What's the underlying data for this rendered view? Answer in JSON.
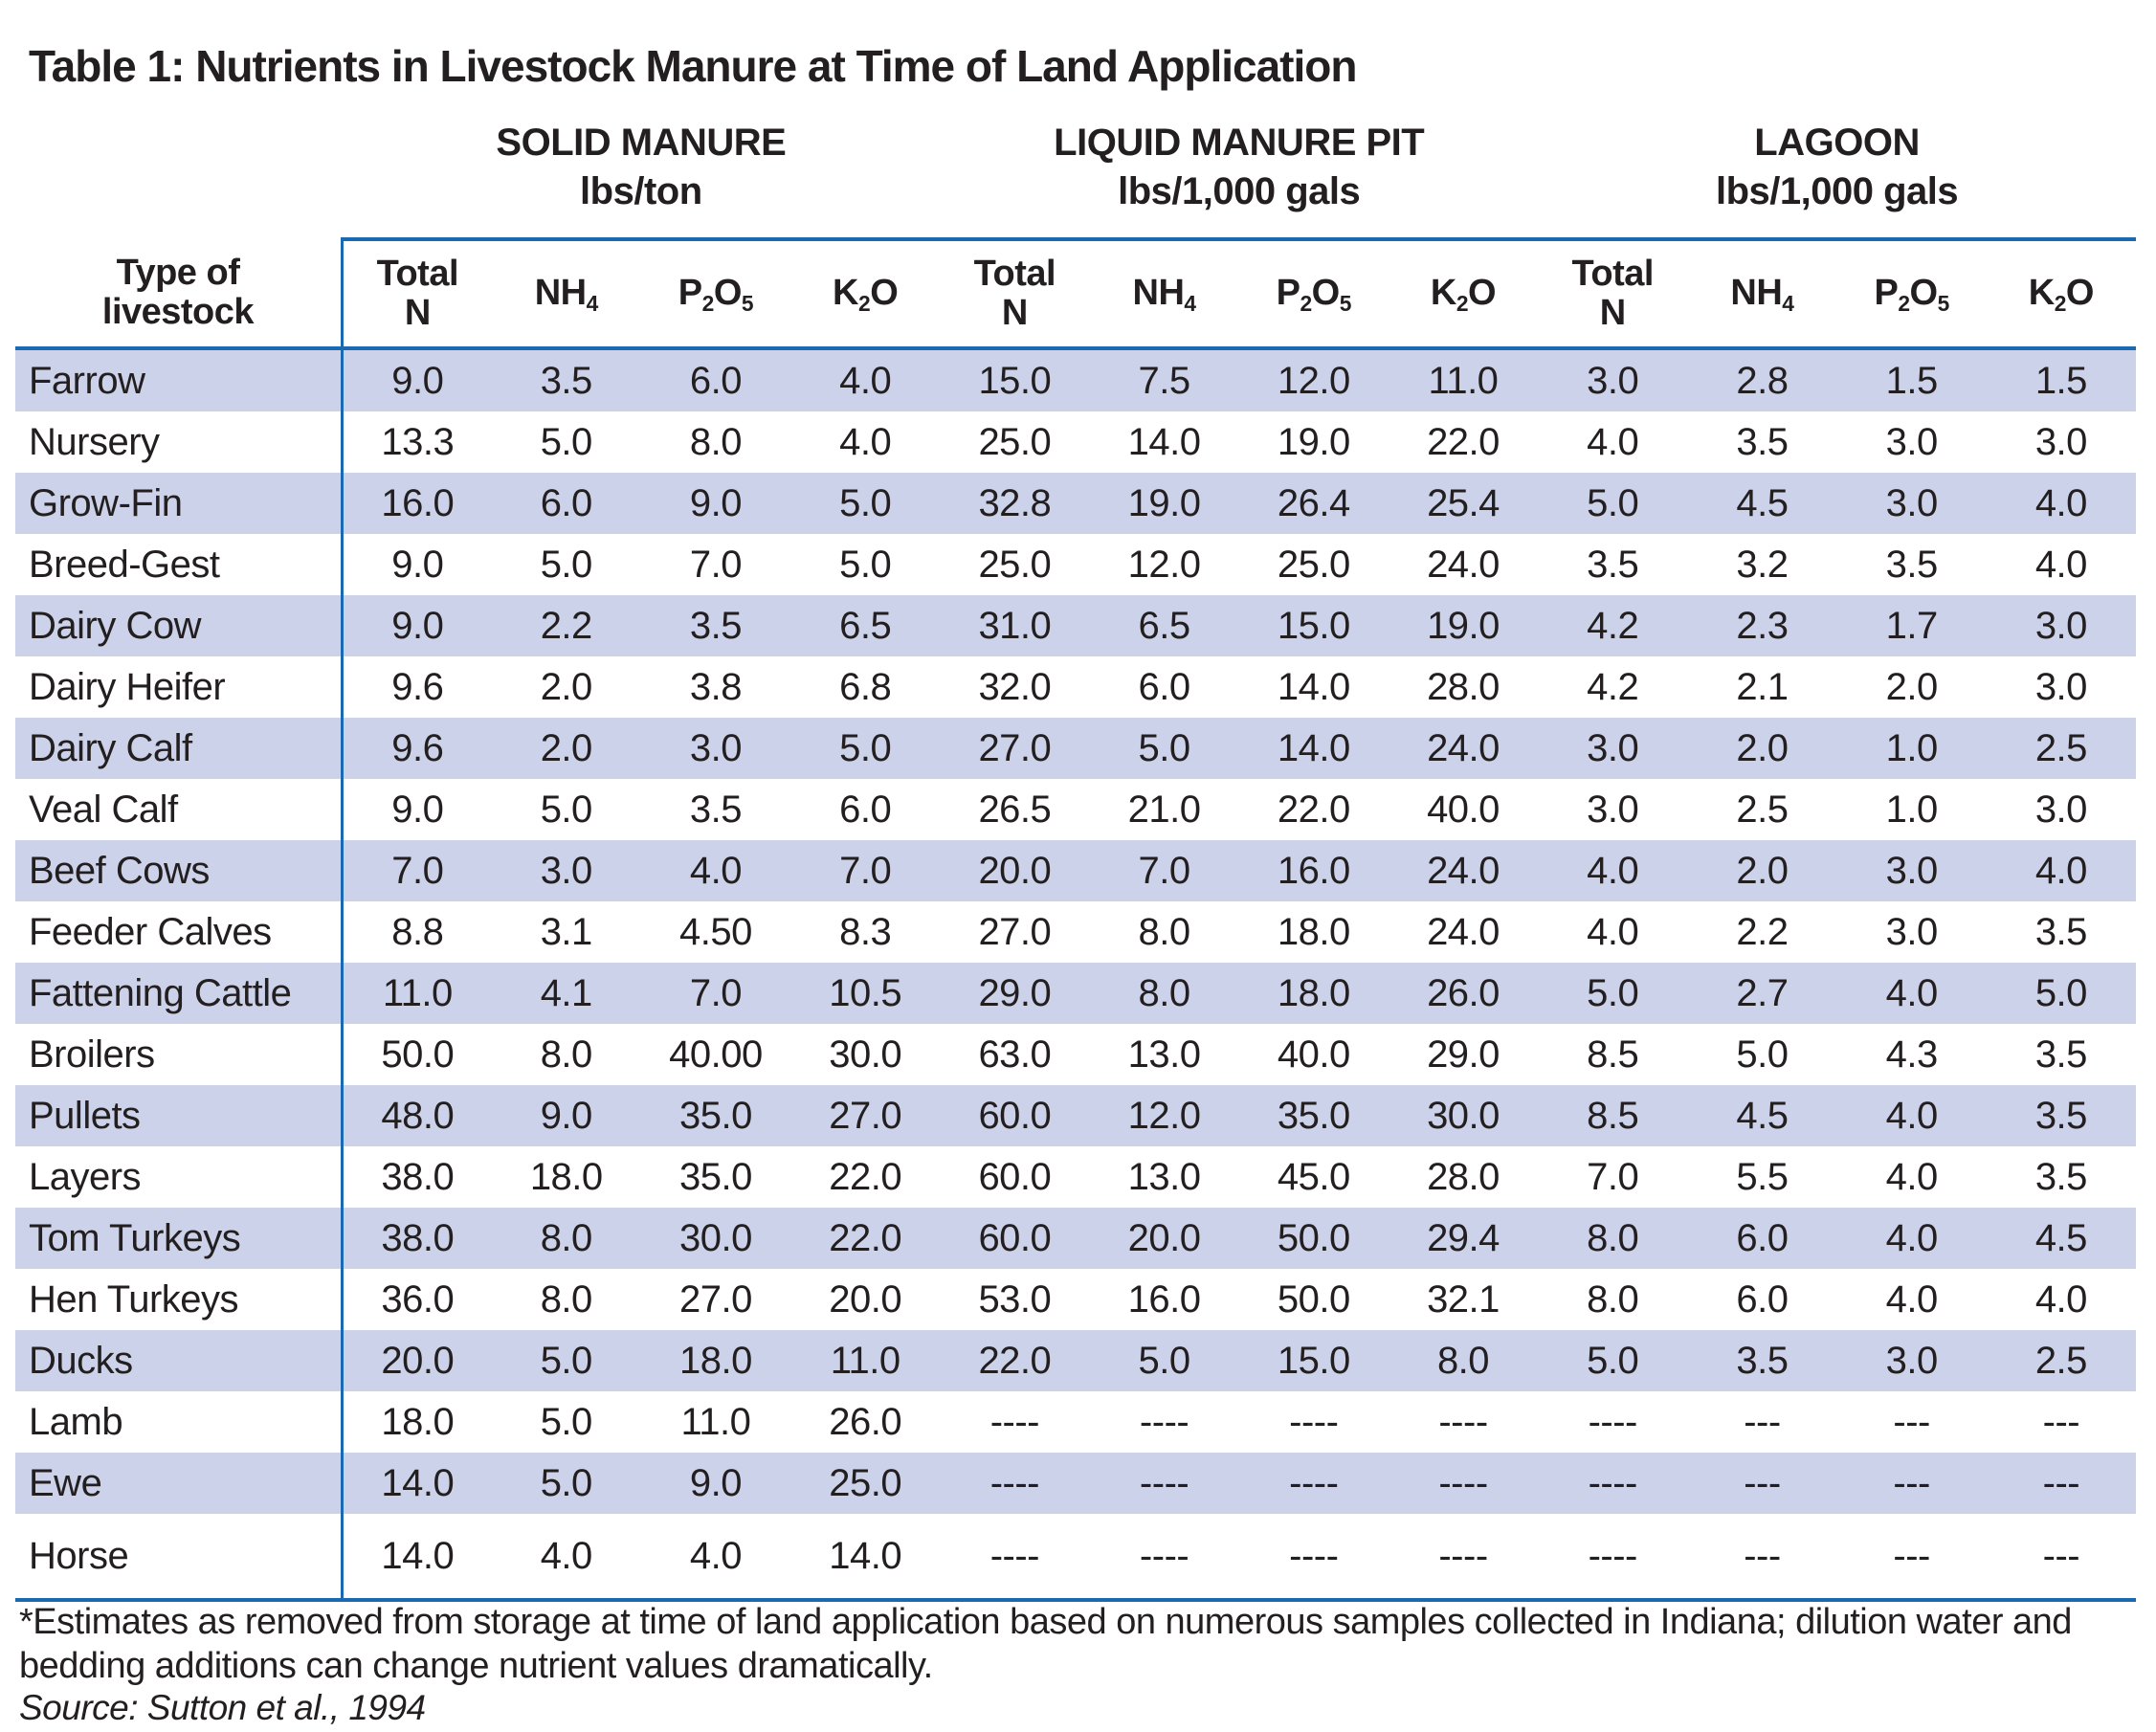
{
  "title": "Table 1: Nutrients in Livestock Manure at Time of Land Application",
  "table": {
    "row_header": {
      "line1": "Type of",
      "line2": "livestock"
    },
    "groups": [
      {
        "name": "SOLID MANURE",
        "unit": "lbs/ton"
      },
      {
        "name": "LIQUID MANURE PIT",
        "unit": "lbs/1,000 gals"
      },
      {
        "name": "LAGOON",
        "unit": "lbs/1,000 gals"
      }
    ],
    "column_headers": {
      "total_n": {
        "line1": "Total",
        "line2": "N"
      },
      "nh4": {
        "parts": [
          {
            "t": "NH"
          },
          {
            "t": "4",
            "sub": true
          }
        ]
      },
      "p2o5": {
        "parts": [
          {
            "t": "P"
          },
          {
            "t": "2",
            "sub": true
          },
          {
            "t": "O"
          },
          {
            "t": "5",
            "sub": true
          }
        ]
      },
      "k2o": {
        "parts": [
          {
            "t": "K"
          },
          {
            "t": "2",
            "sub": true
          },
          {
            "t": "O"
          }
        ]
      }
    },
    "rows": [
      {
        "name": "Farrow",
        "solid": [
          "9.0",
          "3.5",
          "6.0",
          "4.0"
        ],
        "liquid": [
          "15.0",
          "7.5",
          "12.0",
          "11.0"
        ],
        "lagoon": [
          "3.0",
          "2.8",
          "1.5",
          "1.5"
        ]
      },
      {
        "name": "Nursery",
        "solid": [
          "13.3",
          "5.0",
          "8.0",
          "4.0"
        ],
        "liquid": [
          "25.0",
          "14.0",
          "19.0",
          "22.0"
        ],
        "lagoon": [
          "4.0",
          "3.5",
          "3.0",
          "3.0"
        ]
      },
      {
        "name": "Grow-Fin",
        "solid": [
          "16.0",
          "6.0",
          "9.0",
          "5.0"
        ],
        "liquid": [
          "32.8",
          "19.0",
          "26.4",
          "25.4"
        ],
        "lagoon": [
          "5.0",
          "4.5",
          "3.0",
          "4.0"
        ]
      },
      {
        "name": "Breed-Gest",
        "solid": [
          "9.0",
          "5.0",
          "7.0",
          "5.0"
        ],
        "liquid": [
          "25.0",
          "12.0",
          "25.0",
          "24.0"
        ],
        "lagoon": [
          "3.5",
          "3.2",
          "3.5",
          "4.0"
        ]
      },
      {
        "name": "Dairy Cow",
        "solid": [
          "9.0",
          "2.2",
          "3.5",
          "6.5"
        ],
        "liquid": [
          "31.0",
          "6.5",
          "15.0",
          "19.0"
        ],
        "lagoon": [
          "4.2",
          "2.3",
          "1.7",
          "3.0"
        ]
      },
      {
        "name": "Dairy Heifer",
        "solid": [
          "9.6",
          "2.0",
          "3.8",
          "6.8"
        ],
        "liquid": [
          "32.0",
          "6.0",
          "14.0",
          "28.0"
        ],
        "lagoon": [
          "4.2",
          "2.1",
          "2.0",
          "3.0"
        ]
      },
      {
        "name": "Dairy Calf",
        "solid": [
          "9.6",
          "2.0",
          "3.0",
          "5.0"
        ],
        "liquid": [
          "27.0",
          "5.0",
          "14.0",
          "24.0"
        ],
        "lagoon": [
          "3.0",
          "2.0",
          "1.0",
          "2.5"
        ]
      },
      {
        "name": "Veal Calf",
        "solid": [
          "9.0",
          "5.0",
          "3.5",
          "6.0"
        ],
        "liquid": [
          "26.5",
          "21.0",
          "22.0",
          "40.0"
        ],
        "lagoon": [
          "3.0",
          "2.5",
          "1.0",
          "3.0"
        ]
      },
      {
        "name": "Beef Cows",
        "solid": [
          "7.0",
          "3.0",
          "4.0",
          "7.0"
        ],
        "liquid": [
          "20.0",
          "7.0",
          "16.0",
          "24.0"
        ],
        "lagoon": [
          "4.0",
          "2.0",
          "3.0",
          "4.0"
        ]
      },
      {
        "name": "Feeder Calves",
        "solid": [
          "8.8",
          "3.1",
          "4.50",
          "8.3"
        ],
        "liquid": [
          "27.0",
          "8.0",
          "18.0",
          "24.0"
        ],
        "lagoon": [
          "4.0",
          "2.2",
          "3.0",
          "3.5"
        ]
      },
      {
        "name": "Fattening Cattle",
        "solid": [
          "11.0",
          "4.1",
          "7.0",
          "10.5"
        ],
        "liquid": [
          "29.0",
          "8.0",
          "18.0",
          "26.0"
        ],
        "lagoon": [
          "5.0",
          "2.7",
          "4.0",
          "5.0"
        ]
      },
      {
        "name": "Broilers",
        "solid": [
          "50.0",
          "8.0",
          "40.00",
          "30.0"
        ],
        "liquid": [
          "63.0",
          "13.0",
          "40.0",
          "29.0"
        ],
        "lagoon": [
          "8.5",
          "5.0",
          "4.3",
          "3.5"
        ]
      },
      {
        "name": "Pullets",
        "solid": [
          "48.0",
          "9.0",
          "35.0",
          "27.0"
        ],
        "liquid": [
          "60.0",
          "12.0",
          "35.0",
          "30.0"
        ],
        "lagoon": [
          "8.5",
          "4.5",
          "4.0",
          "3.5"
        ]
      },
      {
        "name": "Layers",
        "solid": [
          "38.0",
          "18.0",
          "35.0",
          "22.0"
        ],
        "liquid": [
          "60.0",
          "13.0",
          "45.0",
          "28.0"
        ],
        "lagoon": [
          "7.0",
          "5.5",
          "4.0",
          "3.5"
        ]
      },
      {
        "name": "Tom Turkeys",
        "solid": [
          "38.0",
          "8.0",
          "30.0",
          "22.0"
        ],
        "liquid": [
          "60.0",
          "20.0",
          "50.0",
          "29.4"
        ],
        "lagoon": [
          "8.0",
          "6.0",
          "4.0",
          "4.5"
        ]
      },
      {
        "name": "Hen Turkeys",
        "solid": [
          "36.0",
          "8.0",
          "27.0",
          "20.0"
        ],
        "liquid": [
          "53.0",
          "16.0",
          "50.0",
          "32.1"
        ],
        "lagoon": [
          "8.0",
          "6.0",
          "4.0",
          "4.0"
        ]
      },
      {
        "name": "Ducks",
        "solid": [
          "20.0",
          "5.0",
          "18.0",
          "11.0"
        ],
        "liquid": [
          "22.0",
          "5.0",
          "15.0",
          "8.0"
        ],
        "lagoon": [
          "5.0",
          "3.5",
          "3.0",
          "2.5"
        ]
      },
      {
        "name": "Lamb",
        "solid": [
          "18.0",
          "5.0",
          "11.0",
          "26.0"
        ],
        "liquid": [
          "----",
          "----",
          "----",
          "----"
        ],
        "lagoon": [
          "----",
          "---",
          "---",
          "---"
        ]
      },
      {
        "name": "Ewe",
        "solid": [
          "14.0",
          "5.0",
          "9.0",
          "25.0"
        ],
        "liquid": [
          "----",
          "----",
          "----",
          "----"
        ],
        "lagoon": [
          "----",
          "---",
          "---",
          "---"
        ]
      },
      {
        "name": "Horse",
        "solid": [
          "14.0",
          "4.0",
          "4.0",
          "14.0"
        ],
        "liquid": [
          "----",
          "----",
          "----",
          "----"
        ],
        "lagoon": [
          "----",
          "---",
          "---",
          "---"
        ]
      }
    ]
  },
  "footnote": "*Estimates as removed from storage at time of land application based on numerous samples collected in Indiana; dilution water and bedding additions can change nutrient values dramatically.",
  "source": "Source: Sutton et al., 1994",
  "colors": {
    "rule_blue": "#1b69b1",
    "row_shade": "#ccd2e9",
    "text": "#231f20"
  }
}
